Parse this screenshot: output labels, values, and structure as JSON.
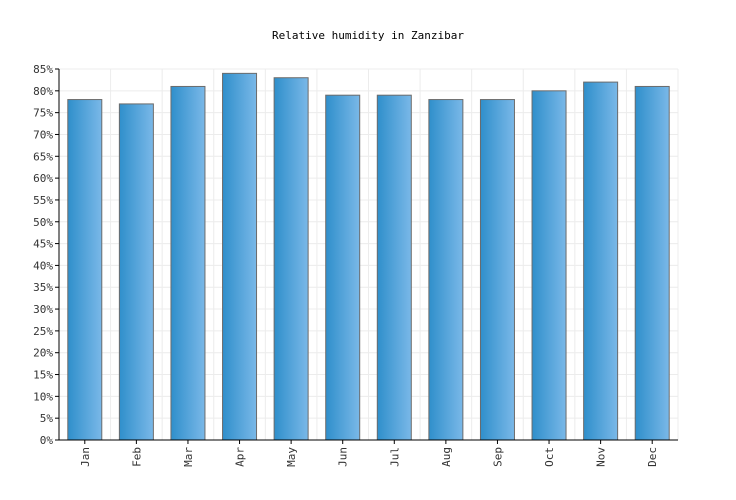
{
  "chart_data": {
    "type": "bar",
    "title": "Relative humidity in Zanzibar",
    "xlabel": "",
    "ylabel": "",
    "categories": [
      "Jan",
      "Feb",
      "Mar",
      "Apr",
      "May",
      "Jun",
      "Jul",
      "Aug",
      "Sep",
      "Oct",
      "Nov",
      "Dec"
    ],
    "values": [
      78,
      77,
      81,
      84,
      83,
      79,
      79,
      78,
      78,
      80,
      82,
      81
    ],
    "ylim": [
      0,
      85
    ],
    "yticks": [
      0,
      5,
      10,
      15,
      20,
      25,
      30,
      35,
      40,
      45,
      50,
      55,
      60,
      65,
      70,
      75,
      80,
      85
    ],
    "ytick_suffix": "%",
    "grid": true,
    "legend": "none",
    "colors": {
      "bar_dark": "#2f8fcb",
      "bar_light": "#7ab8e8",
      "bar_stroke": "#6b6b6b",
      "grid": "#ececec",
      "axis": "#000000"
    }
  }
}
